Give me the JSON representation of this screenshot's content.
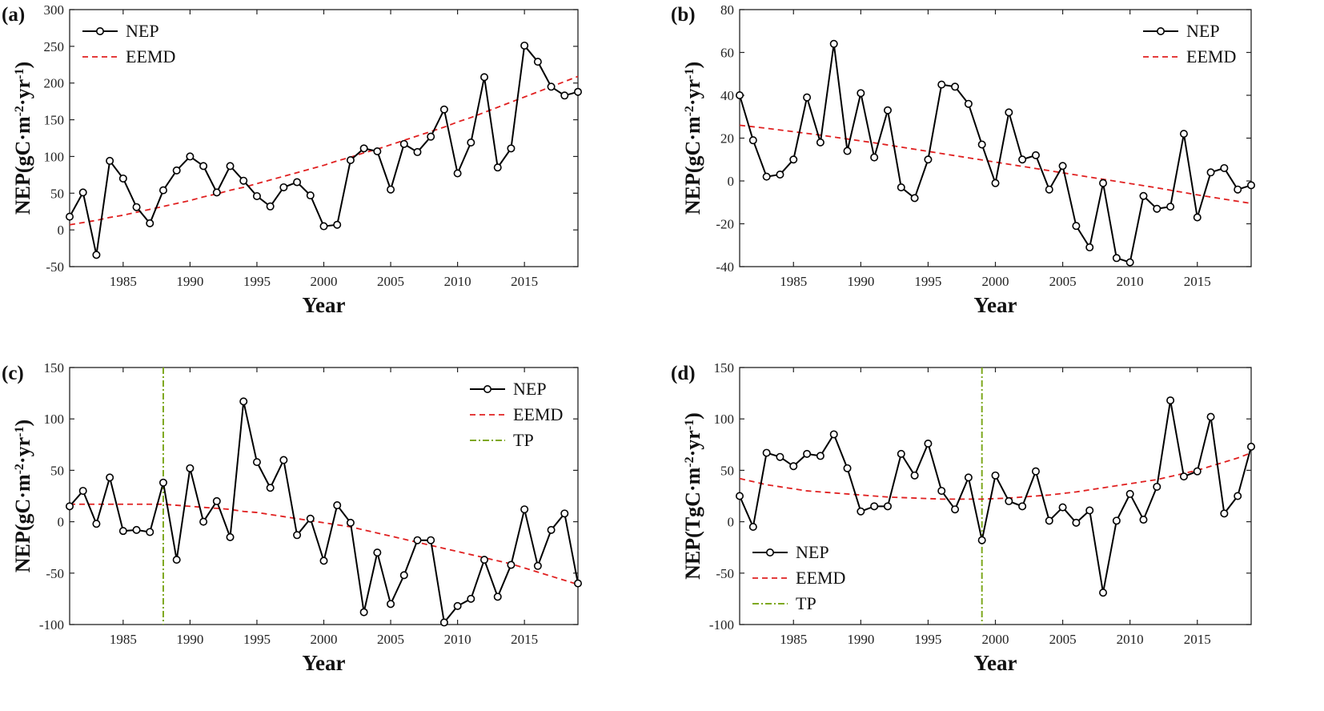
{
  "chart_data": [
    {
      "type": "line",
      "panel_label": "(a)",
      "xlabel": "Year",
      "ylabel": {
        "base": "NEP(gC·m",
        "exp1": "-2",
        "mid": "·yr",
        "exp2": "-1",
        "close": ")"
      },
      "xlim": [
        1981,
        2019
      ],
      "ylim": [
        -50,
        300
      ],
      "xticks": [
        1985,
        1990,
        1995,
        2000,
        2005,
        2010,
        2015
      ],
      "yticks": [
        -50,
        0,
        50,
        100,
        150,
        200,
        250,
        300
      ],
      "legend_position": "top-left",
      "x": [
        1981,
        1982,
        1983,
        1984,
        1985,
        1986,
        1987,
        1988,
        1989,
        1990,
        1991,
        1992,
        1993,
        1994,
        1995,
        1996,
        1997,
        1998,
        1999,
        2000,
        2001,
        2002,
        2003,
        2004,
        2005,
        2006,
        2007,
        2008,
        2009,
        2010,
        2011,
        2012,
        2013,
        2014,
        2015,
        2016,
        2017,
        2018,
        2019
      ],
      "series": [
        {
          "name": "NEP",
          "style": "line-marker",
          "color": "#000000",
          "values": [
            18,
            51,
            -34,
            94,
            70,
            31,
            9,
            54,
            81,
            100,
            87,
            51,
            87,
            67,
            46,
            32,
            58,
            65,
            47,
            5,
            7,
            95,
            111,
            107,
            55,
            117,
            106,
            127,
            164,
            77,
            119,
            208,
            85,
            111,
            251,
            229,
            195,
            183,
            188
          ]
        },
        {
          "name": "EEMD",
          "style": "dashed",
          "color": "#e02020",
          "values": [
            7,
            10,
            13,
            17,
            20,
            24,
            28,
            32,
            36,
            40,
            45,
            49,
            54,
            58,
            63,
            68,
            73,
            78,
            83,
            88,
            94,
            99,
            105,
            110,
            116,
            122,
            128,
            134,
            140,
            147,
            153,
            160,
            167,
            174,
            181,
            188,
            195,
            202,
            209
          ]
        }
      ]
    },
    {
      "type": "line",
      "panel_label": "(b)",
      "xlabel": "Year",
      "ylabel": {
        "base": "NEP(gC·m",
        "exp1": "-2",
        "mid": "·yr",
        "exp2": "-1",
        "close": ")"
      },
      "xlim": [
        1981,
        2019
      ],
      "ylim": [
        -40,
        80
      ],
      "xticks": [
        1985,
        1990,
        1995,
        2000,
        2005,
        2010,
        2015
      ],
      "yticks": [
        -40,
        -20,
        0,
        20,
        40,
        60,
        80
      ],
      "legend_position": "top-right",
      "x": [
        1981,
        1982,
        1983,
        1984,
        1985,
        1986,
        1987,
        1988,
        1989,
        1990,
        1991,
        1992,
        1993,
        1994,
        1995,
        1996,
        1997,
        1998,
        1999,
        2000,
        2001,
        2002,
        2003,
        2004,
        2005,
        2006,
        2007,
        2008,
        2009,
        2010,
        2011,
        2012,
        2013,
        2014,
        2015,
        2016,
        2017,
        2018,
        2019
      ],
      "series": [
        {
          "name": "NEP",
          "style": "line-marker",
          "color": "#000000",
          "values": [
            40,
            19,
            2,
            3,
            10,
            39,
            18,
            64,
            14,
            41,
            11,
            33,
            -3,
            -8,
            10,
            45,
            44,
            36,
            17,
            -1,
            32,
            10,
            12,
            -4,
            7,
            -21,
            -31,
            -1,
            -36,
            -38,
            -7,
            -13,
            -12,
            22,
            -17,
            4,
            6,
            -4,
            -2
          ]
        },
        {
          "name": "EEMD",
          "style": "dashed",
          "color": "#e02020",
          "values": [
            26,
            25.3,
            24.6,
            23.8,
            23,
            22.2,
            21.4,
            20.5,
            19.6,
            18.7,
            17.8,
            16.8,
            15.8,
            14.8,
            13.8,
            12.8,
            11.8,
            10.8,
            9.8,
            8.8,
            7.8,
            6.8,
            5.8,
            4.8,
            3.8,
            2.8,
            1.8,
            0.8,
            -0.2,
            -1.2,
            -2.2,
            -3.2,
            -4.3,
            -5.4,
            -6.5,
            -7.5,
            -8.5,
            -9.5,
            -10.5
          ]
        }
      ]
    },
    {
      "type": "line",
      "panel_label": "(c)",
      "xlabel": "Year",
      "ylabel": {
        "base": "NEP(gC·m",
        "exp1": "-2",
        "mid": "·yr",
        "exp2": "-1",
        "close": ")"
      },
      "xlim": [
        1981,
        2019
      ],
      "ylim": [
        -100,
        150
      ],
      "xticks": [
        1985,
        1990,
        1995,
        2000,
        2005,
        2010,
        2015
      ],
      "yticks": [
        -100,
        -50,
        0,
        50,
        100,
        150
      ],
      "legend_position": "top-right",
      "turning_point": 1988,
      "x": [
        1981,
        1982,
        1983,
        1984,
        1985,
        1986,
        1987,
        1988,
        1989,
        1990,
        1991,
        1992,
        1993,
        1994,
        1995,
        1996,
        1997,
        1998,
        1999,
        2000,
        2001,
        2002,
        2003,
        2004,
        2005,
        2006,
        2007,
        2008,
        2009,
        2010,
        2011,
        2012,
        2013,
        2014,
        2015,
        2016,
        2017,
        2018,
        2019
      ],
      "series": [
        {
          "name": "NEP",
          "style": "line-marker",
          "color": "#000000",
          "values": [
            15,
            30,
            -2,
            43,
            -9,
            -8,
            -10,
            38,
            -37,
            52,
            0,
            20,
            -15,
            117,
            58,
            33,
            60,
            -13,
            3,
            -38,
            16,
            -1,
            -88,
            -30,
            -80,
            -52,
            -18,
            -18,
            -98,
            -82,
            -75,
            -37,
            -73,
            -42,
            12,
            -43,
            -8,
            8,
            -60
          ]
        },
        {
          "name": "EEMD",
          "style": "dashed",
          "color": "#e02020",
          "values": [
            17,
            17,
            17,
            17,
            17,
            17,
            17,
            17,
            16,
            15,
            14,
            13,
            12,
            10,
            9,
            7,
            5,
            3,
            1,
            -1,
            -3,
            -5,
            -8,
            -11,
            -14,
            -17,
            -20,
            -23,
            -26,
            -29,
            -32,
            -35,
            -38,
            -41,
            -45,
            -49,
            -53,
            -57,
            -61
          ]
        },
        {
          "name": "TP",
          "style": "dashdot",
          "color": "#7ea81e"
        }
      ]
    },
    {
      "type": "line",
      "panel_label": "(d)",
      "xlabel": "Year",
      "ylabel": {
        "base": "NEP(TgC·m",
        "exp1": "-2",
        "mid": "·yr",
        "exp2": "-1",
        "close": ")"
      },
      "xlim": [
        1981,
        2019
      ],
      "ylim": [
        -100,
        150
      ],
      "xticks": [
        1985,
        1990,
        1995,
        2000,
        2005,
        2010,
        2015
      ],
      "yticks": [
        -100,
        -50,
        0,
        50,
        100,
        150
      ],
      "legend_position": "bottom-left",
      "turning_point": 1999,
      "x": [
        1981,
        1982,
        1983,
        1984,
        1985,
        1986,
        1987,
        1988,
        1989,
        1990,
        1991,
        1992,
        1993,
        1994,
        1995,
        1996,
        1997,
        1998,
        1999,
        2000,
        2001,
        2002,
        2003,
        2004,
        2005,
        2006,
        2007,
        2008,
        2009,
        2010,
        2011,
        2012,
        2013,
        2014,
        2015,
        2016,
        2017,
        2018,
        2019
      ],
      "series": [
        {
          "name": "NEP",
          "style": "line-marker",
          "color": "#000000",
          "values": [
            25,
            -5,
            67,
            63,
            54,
            66,
            64,
            85,
            52,
            10,
            15,
            15,
            66,
            45,
            76,
            30,
            12,
            43,
            -18,
            45,
            20,
            15,
            49,
            1,
            14,
            -1,
            11,
            -69,
            1,
            27,
            2,
            34,
            118,
            44,
            49,
            102,
            8,
            25,
            73
          ]
        },
        {
          "name": "EEMD",
          "style": "dashed",
          "color": "#e02020",
          "values": [
            42,
            39,
            36,
            34,
            32,
            30,
            29,
            28,
            27,
            26,
            25,
            24,
            23.5,
            23,
            22.5,
            22,
            22,
            22,
            22,
            22.5,
            23,
            24,
            25,
            26,
            27.5,
            29,
            31,
            33,
            35,
            37,
            39,
            41,
            44,
            47,
            50,
            54,
            58,
            62,
            67
          ]
        },
        {
          "name": "TP",
          "style": "dashdot",
          "color": "#7ea81e"
        }
      ]
    }
  ]
}
